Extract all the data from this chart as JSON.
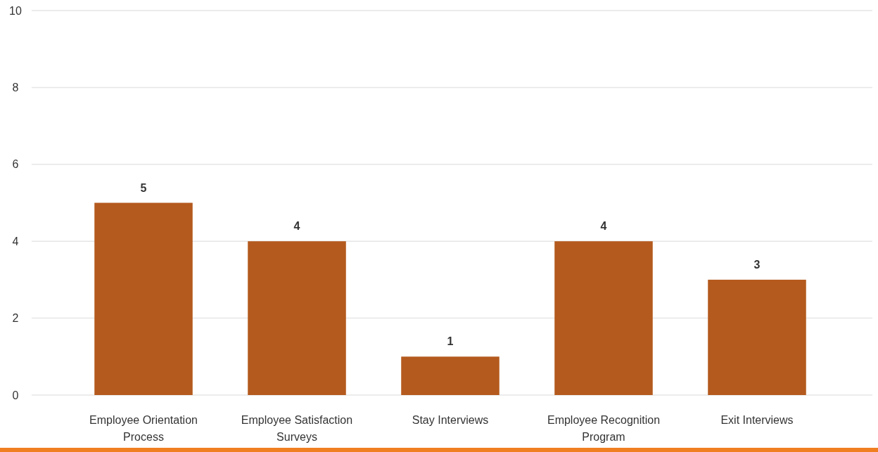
{
  "chart_data": {
    "type": "bar",
    "categories": [
      "Employee Orientation Process",
      "Employee Satisfaction Surveys",
      "Stay Interviews",
      "Employee Recognition Program",
      "Exit Interviews"
    ],
    "values": [
      5,
      4,
      1,
      4,
      3
    ],
    "color": "#b45a1e",
    "ylim": [
      0,
      10
    ],
    "yticks": [
      0,
      2,
      4,
      6,
      8,
      10
    ],
    "grid": "y",
    "data_labels": true
  }
}
